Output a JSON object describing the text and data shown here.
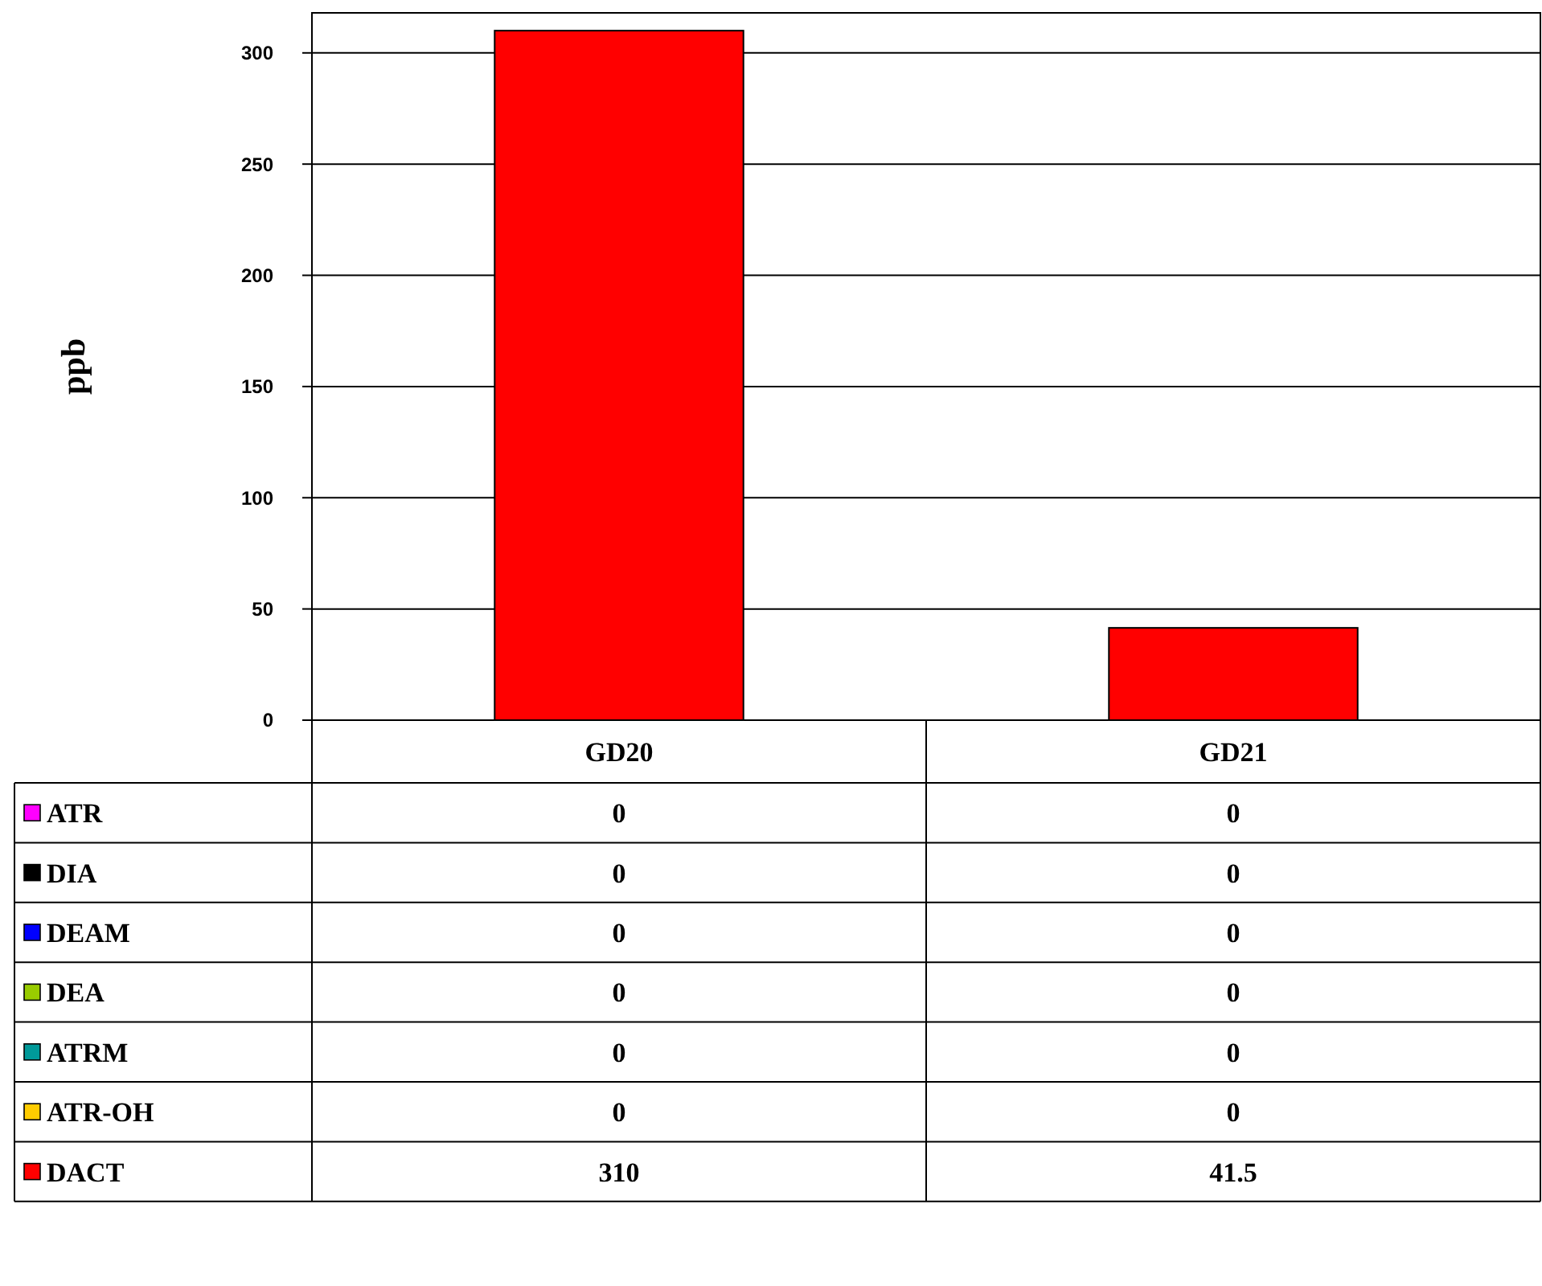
{
  "chart_data": {
    "type": "bar",
    "stacked": true,
    "ylabel": "ppb",
    "categories": [
      "GD20",
      "GD21"
    ],
    "series": [
      {
        "name": "ATR",
        "color": "#ff00ff",
        "values": [
          0,
          0
        ]
      },
      {
        "name": "DIA",
        "color": "#000000",
        "values": [
          0,
          0
        ]
      },
      {
        "name": "DEAM",
        "color": "#0000ff",
        "values": [
          0,
          0
        ]
      },
      {
        "name": "DEA",
        "color": "#99cc00",
        "values": [
          0,
          0
        ]
      },
      {
        "name": "ATRM",
        "color": "#009999",
        "values": [
          0,
          0
        ]
      },
      {
        "name": "ATR-OH",
        "color": "#ffcc00",
        "values": [
          0,
          0
        ]
      },
      {
        "name": "DACT",
        "color": "#ff0000",
        "values": [
          310,
          41.5
        ]
      }
    ],
    "ylim": [
      0,
      318
    ],
    "yticks": [
      0,
      50,
      100,
      150,
      200,
      250,
      300
    ],
    "grid": "y",
    "legend": "bottom",
    "data_labels": true
  }
}
